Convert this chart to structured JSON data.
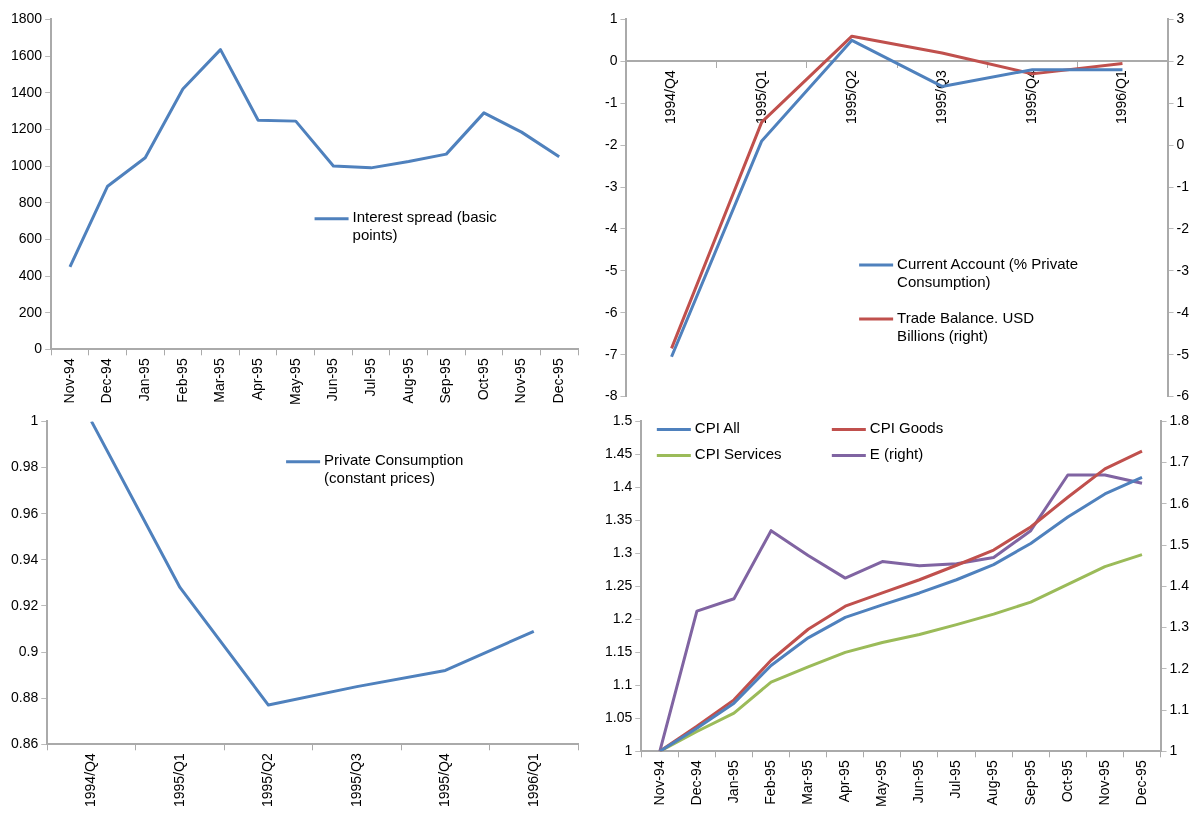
{
  "chart_data": [
    {
      "type": "line",
      "categories": [
        "Nov-94",
        "Dec-94",
        "Jan-95",
        "Feb-95",
        "Mar-95",
        "Apr-95",
        "May-95",
        "Jun-95",
        "Jul-95",
        "Aug-95",
        "Sep-95",
        "Oct-95",
        "Nov-95",
        "Dec-95"
      ],
      "series": [
        {
          "name": "Interest spread (basic points)",
          "color": "#4f81bd",
          "values": [
            450,
            890,
            1045,
            1420,
            1635,
            1250,
            1245,
            1000,
            990,
            1025,
            1065,
            1290,
            1185,
            1050
          ]
        }
      ],
      "ylim": [
        0,
        1800
      ],
      "yticks": [
        0,
        200,
        400,
        600,
        800,
        1000,
        1200,
        1400,
        1600,
        1800
      ],
      "grid": false,
      "legend": "right"
    },
    {
      "type": "line",
      "categories": [
        "1994/Q4",
        "1995/Q1",
        "1995/Q2",
        "1995/Q3",
        "1995/Q4",
        "1996/Q1"
      ],
      "series": [
        {
          "name": "Current Account (% Private Consumption)",
          "color": "#4f81bd",
          "values": [
            -7.05,
            -1.9,
            0.5,
            -0.6,
            -0.2,
            -0.2
          ]
        },
        {
          "name": "Trade Balance. USD Billions (right)",
          "color": "#c0504d",
          "axis": "y2",
          "values": [
            -4.85,
            0.55,
            2.6,
            2.2,
            1.7,
            1.95
          ]
        }
      ],
      "ylim": [
        -8,
        1
      ],
      "yticks": [
        -8,
        -7,
        -6,
        -5,
        -4,
        -3,
        -2,
        -1,
        0,
        1
      ],
      "y2lim": [
        -6,
        3
      ],
      "y2ticks": [
        -6,
        -5,
        -4,
        -3,
        -2,
        -1,
        0,
        1,
        2,
        3
      ],
      "grid": false,
      "legend": "bottom right"
    },
    {
      "type": "line",
      "categories": [
        "1994/Q4",
        "1995/Q1",
        "1995/Q2",
        "1995/Q3",
        "1995/Q4",
        "1996/Q1"
      ],
      "series": [
        {
          "name": "Private Consumption (constant prices)",
          "color": "#4f81bd",
          "values": [
            1.0,
            0.928,
            0.877,
            0.885,
            0.892,
            0.909
          ]
        }
      ],
      "ylim": [
        0.86,
        1
      ],
      "yticks": [
        0.86,
        0.88,
        0.9,
        0.92,
        0.94,
        0.96,
        0.98,
        1
      ],
      "grid": false,
      "legend": "top right"
    },
    {
      "type": "line",
      "categories": [
        "Nov-94",
        "Dec-94",
        "Jan-95",
        "Feb-95",
        "Mar-95",
        "Apr-95",
        "May-95",
        "Jun-95",
        "Jul-95",
        "Aug-95",
        "Sep-95",
        "Oct-95",
        "Nov-95",
        "Dec-95"
      ],
      "series": [
        {
          "name": "CPI All",
          "color": "#4f81bd",
          "values": [
            1,
            1.035,
            1.073,
            1.13,
            1.172,
            1.203,
            1.222,
            1.24,
            1.26,
            1.283,
            1.315,
            1.355,
            1.39,
            1.415
          ]
        },
        {
          "name": "CPI Goods",
          "color": "#c0504d",
          "values": [
            1,
            1.038,
            1.078,
            1.138,
            1.185,
            1.22,
            1.24,
            1.26,
            1.282,
            1.305,
            1.34,
            1.385,
            1.428,
            1.455
          ]
        },
        {
          "name": "CPI Services",
          "color": "#9bbb59",
          "values": [
            1,
            1.03,
            1.058,
            1.105,
            1.128,
            1.15,
            1.165,
            1.177,
            1.192,
            1.208,
            1.226,
            1.253,
            1.28,
            1.298
          ]
        },
        {
          "name": "E (right)",
          "color": "#8064a2",
          "axis": "y2",
          "values": [
            1,
            1.34,
            1.37,
            1.535,
            1.475,
            1.42,
            1.46,
            1.45,
            1.455,
            1.47,
            1.535,
            1.67,
            1.67,
            1.65
          ]
        }
      ],
      "ylim": [
        1,
        1.5
      ],
      "yticks": [
        1,
        1.05,
        1.1,
        1.15,
        1.2,
        1.25,
        1.3,
        1.35,
        1.4,
        1.45,
        1.5
      ],
      "y2lim": [
        1,
        1.8
      ],
      "y2ticks": [
        1,
        1.1,
        1.2,
        1.3,
        1.4,
        1.5,
        1.6,
        1.7,
        1.8
      ],
      "grid": false,
      "legend": "top left"
    }
  ]
}
